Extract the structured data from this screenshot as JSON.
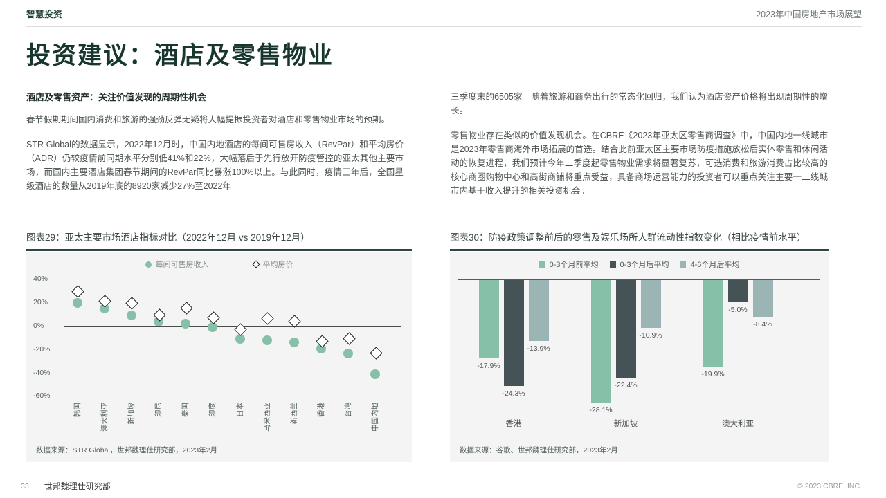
{
  "header": {
    "brand": "智慧投资",
    "report_title": "2023年中国房地产市场展望"
  },
  "page_title": "投资建议：酒店及零售物业",
  "article": {
    "heading": "酒店及零售资产：关注价值发现的周期性机会",
    "left_paragraphs": [
      "春节假期期间国内消费和旅游的强劲反弹无疑将大幅提振投资者对酒店和零售物业市场的预期。",
      "STR Global的数据显示，2022年12月时，中国内地酒店的每间可售房收入（RevPar）和平均房价（ADR）仍较疫情前同期水平分别低41%和22%，大幅落后于先行放开防疫管控的亚太其他主要市场，而国内主要酒店集团春节期间的RevPar同比暴涨100%以上。与此同时，疫情三年后，全国星级酒店的数量从2019年底的8920家减少27%至2022年"
    ],
    "right_paragraphs": [
      "三季度末的6505家。随着旅游和商务出行的常态化回归，我们认为酒店资产价格将出现周期性的增长。",
      "零售物业存在类似的价值发现机会。在CBRE《2023年亚太区零售商调查》中，中国内地一线城市是2023年零售商海外市场拓展的首选。结合此前亚太区主要市场防疫措施放松后实体零售和休闲活动的恢复进程，我们预计今年二季度起零售物业需求将显著复苏，可选消费和旅游消费占比较高的核心商圈购物中心和高街商铺将重点受益，具备商场运营能力的投资者可以重点关注主要一二线城市内基于收入提升的相关投资机会。"
    ]
  },
  "chart_data": [
    {
      "type": "scatter",
      "title": "图表29：亚太主要市场酒店指标对比（2022年12月 vs 2019年12月）",
      "source": "数据来源：STR Global，世邦魏理仕研究部，2023年2月",
      "categories": [
        "韩国",
        "澳大利亚",
        "新加坡",
        "印尼",
        "泰国",
        "印度",
        "日本",
        "马来西亚",
        "新西兰",
        "香港",
        "台湾",
        "中国内地"
      ],
      "ylim": [
        -60,
        40
      ],
      "yticks": [
        40,
        20,
        0,
        -20,
        -40,
        -60
      ],
      "ytick_labels": [
        "40%",
        "20%",
        "0%",
        "-20%",
        "-40%",
        "-60%"
      ],
      "grid": false,
      "legend_position": "top",
      "series": [
        {
          "name": "每间可售房收入",
          "marker": "circle",
          "color": "#87c0a9",
          "values": [
            20,
            15,
            9,
            4,
            2,
            -1,
            -11,
            -12,
            -14,
            -19,
            -23,
            -41
          ]
        },
        {
          "name": "平均房价",
          "marker": "diamond",
          "color": "#ffffff",
          "border_color": "#1b1b1b",
          "values": [
            30,
            22,
            20,
            10,
            16,
            8,
            -2,
            7,
            5,
            -12,
            -10,
            -22
          ]
        }
      ]
    },
    {
      "type": "bar",
      "title": "图表30：防疫政策调整前后的零售及娱乐场所人群流动性指数变化（相比疫情前水平）",
      "source": "数据来源：谷歌、世邦魏理仕研究部，2023年2月",
      "categories": [
        "香港",
        "新加坡",
        "澳大利亚"
      ],
      "legend_position": "top",
      "series": [
        {
          "name": "0-3个月前平均",
          "color": "#87c0a9",
          "values": [
            -17.9,
            -28.1,
            -19.9
          ]
        },
        {
          "name": "0-3个月后平均",
          "color": "#455357",
          "values": [
            -24.3,
            -22.4,
            -5.0
          ]
        },
        {
          "name": "4-6个月后平均",
          "color": "#9ab5b4",
          "values": [
            -13.9,
            -10.9,
            -8.4
          ]
        }
      ]
    }
  ],
  "footer": {
    "page_number": "33",
    "department": "世邦魏理仕研究部",
    "copyright": "© 2023 CBRE, INC."
  },
  "colors": {
    "title_green": "#17362e",
    "accent_teal": "#87c0a9",
    "dark_slate": "#455357",
    "gray_teal": "#9ab5b4",
    "panel_bg": "#f4f4f4",
    "rule_dark": "#2f4447"
  }
}
